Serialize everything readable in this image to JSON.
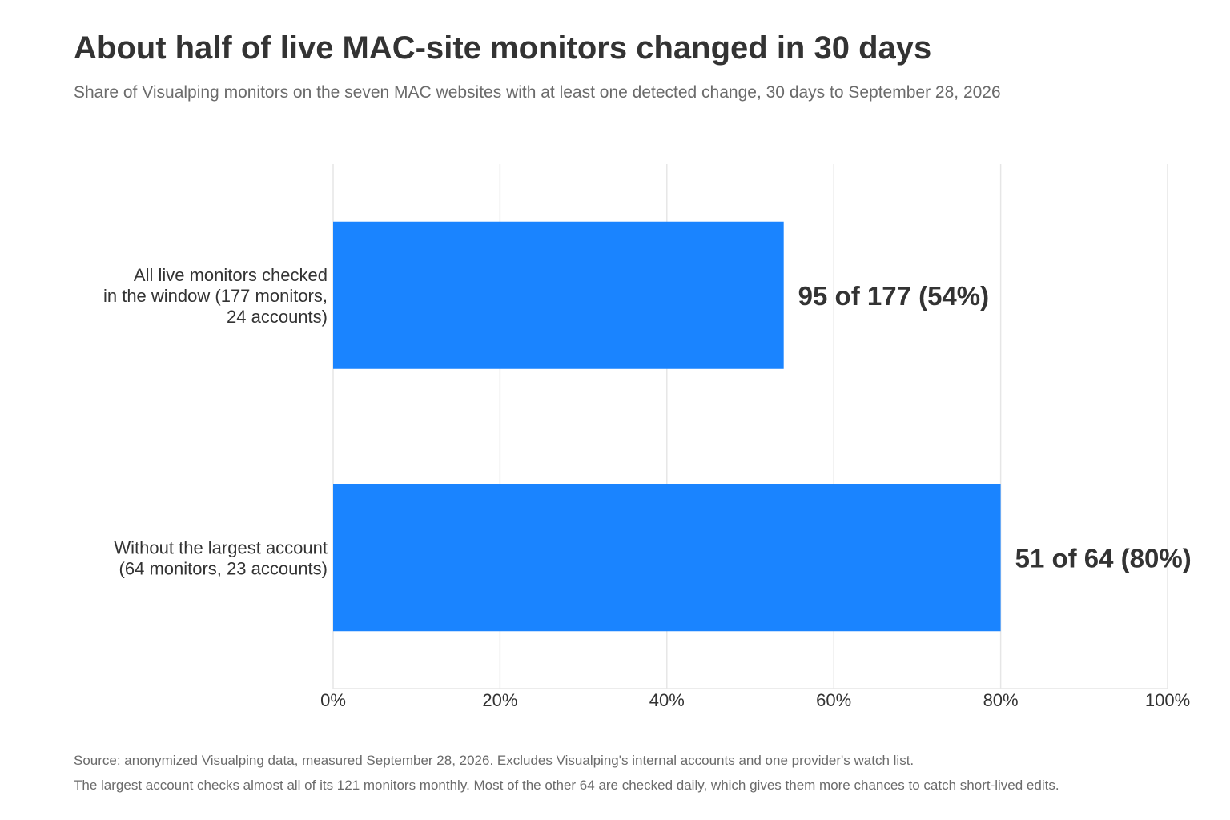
{
  "title": "About half of live MAC-site monitors changed in 30 days",
  "subtitle": "Share of Visualping monitors on the seven MAC websites with at least one detected change, 30 days to September 28, 2026",
  "footnotes": [
    "Source: anonymized Visualping data, measured September 28, 2026. Excludes Visualping's internal accounts and one provider's watch list.",
    "The largest account checks almost all of its 121 monitors monthly. Most of the other 64 are checked daily, which gives them more chances to catch short-lived edits."
  ],
  "colors": {
    "bar": "#1a84ff",
    "grid": "#e6e6e6",
    "text": "#333333",
    "muted": "#6b6b6b"
  },
  "chart_data": {
    "type": "bar",
    "orientation": "horizontal",
    "categories": [
      [
        "All live monitors checked",
        "in the window (177 monitors,",
        "24 accounts)"
      ],
      [
        "Without the largest account",
        "(64 monitors, 23 accounts)"
      ]
    ],
    "values": [
      54,
      80
    ],
    "data_labels": [
      "95 of 177 (54%)",
      "51 of 64 (80%)"
    ],
    "xlim": [
      0,
      100
    ],
    "xticks": [
      0,
      20,
      40,
      60,
      80,
      100
    ],
    "xtick_labels": [
      "0%",
      "20%",
      "40%",
      "60%",
      "80%",
      "100%"
    ],
    "grid": true,
    "legend": false
  }
}
